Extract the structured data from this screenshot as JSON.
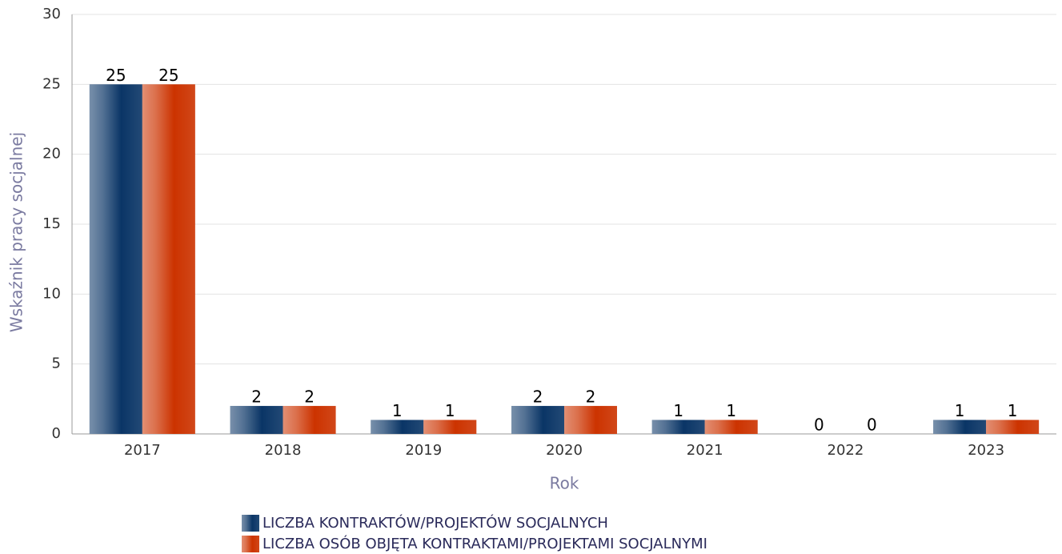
{
  "chart_data": {
    "type": "bar",
    "x_label": "Rok",
    "y_label": "Wskaźnik pracy socjalnej",
    "categories": [
      "2017",
      "2018",
      "2019",
      "2020",
      "2021",
      "2022",
      "2023"
    ],
    "series": [
      {
        "name": "LICZBA KONTRAKTÓW/PROJEKTÓW SOCJALNYCH",
        "color": "#0a3566",
        "values": [
          25,
          2,
          1,
          2,
          1,
          0,
          1
        ]
      },
      {
        "name": "LICZBA OSÓB OBJĘTA KONTRAKTAMI/PROJEKTAMI SOCJALNYMI",
        "color": "#cc3300",
        "values": [
          25,
          2,
          1,
          2,
          1,
          0,
          1
        ]
      }
    ],
    "ylim": [
      0,
      30
    ],
    "yticks": [
      0,
      5,
      10,
      15,
      20,
      25,
      30
    ],
    "grid": true
  }
}
